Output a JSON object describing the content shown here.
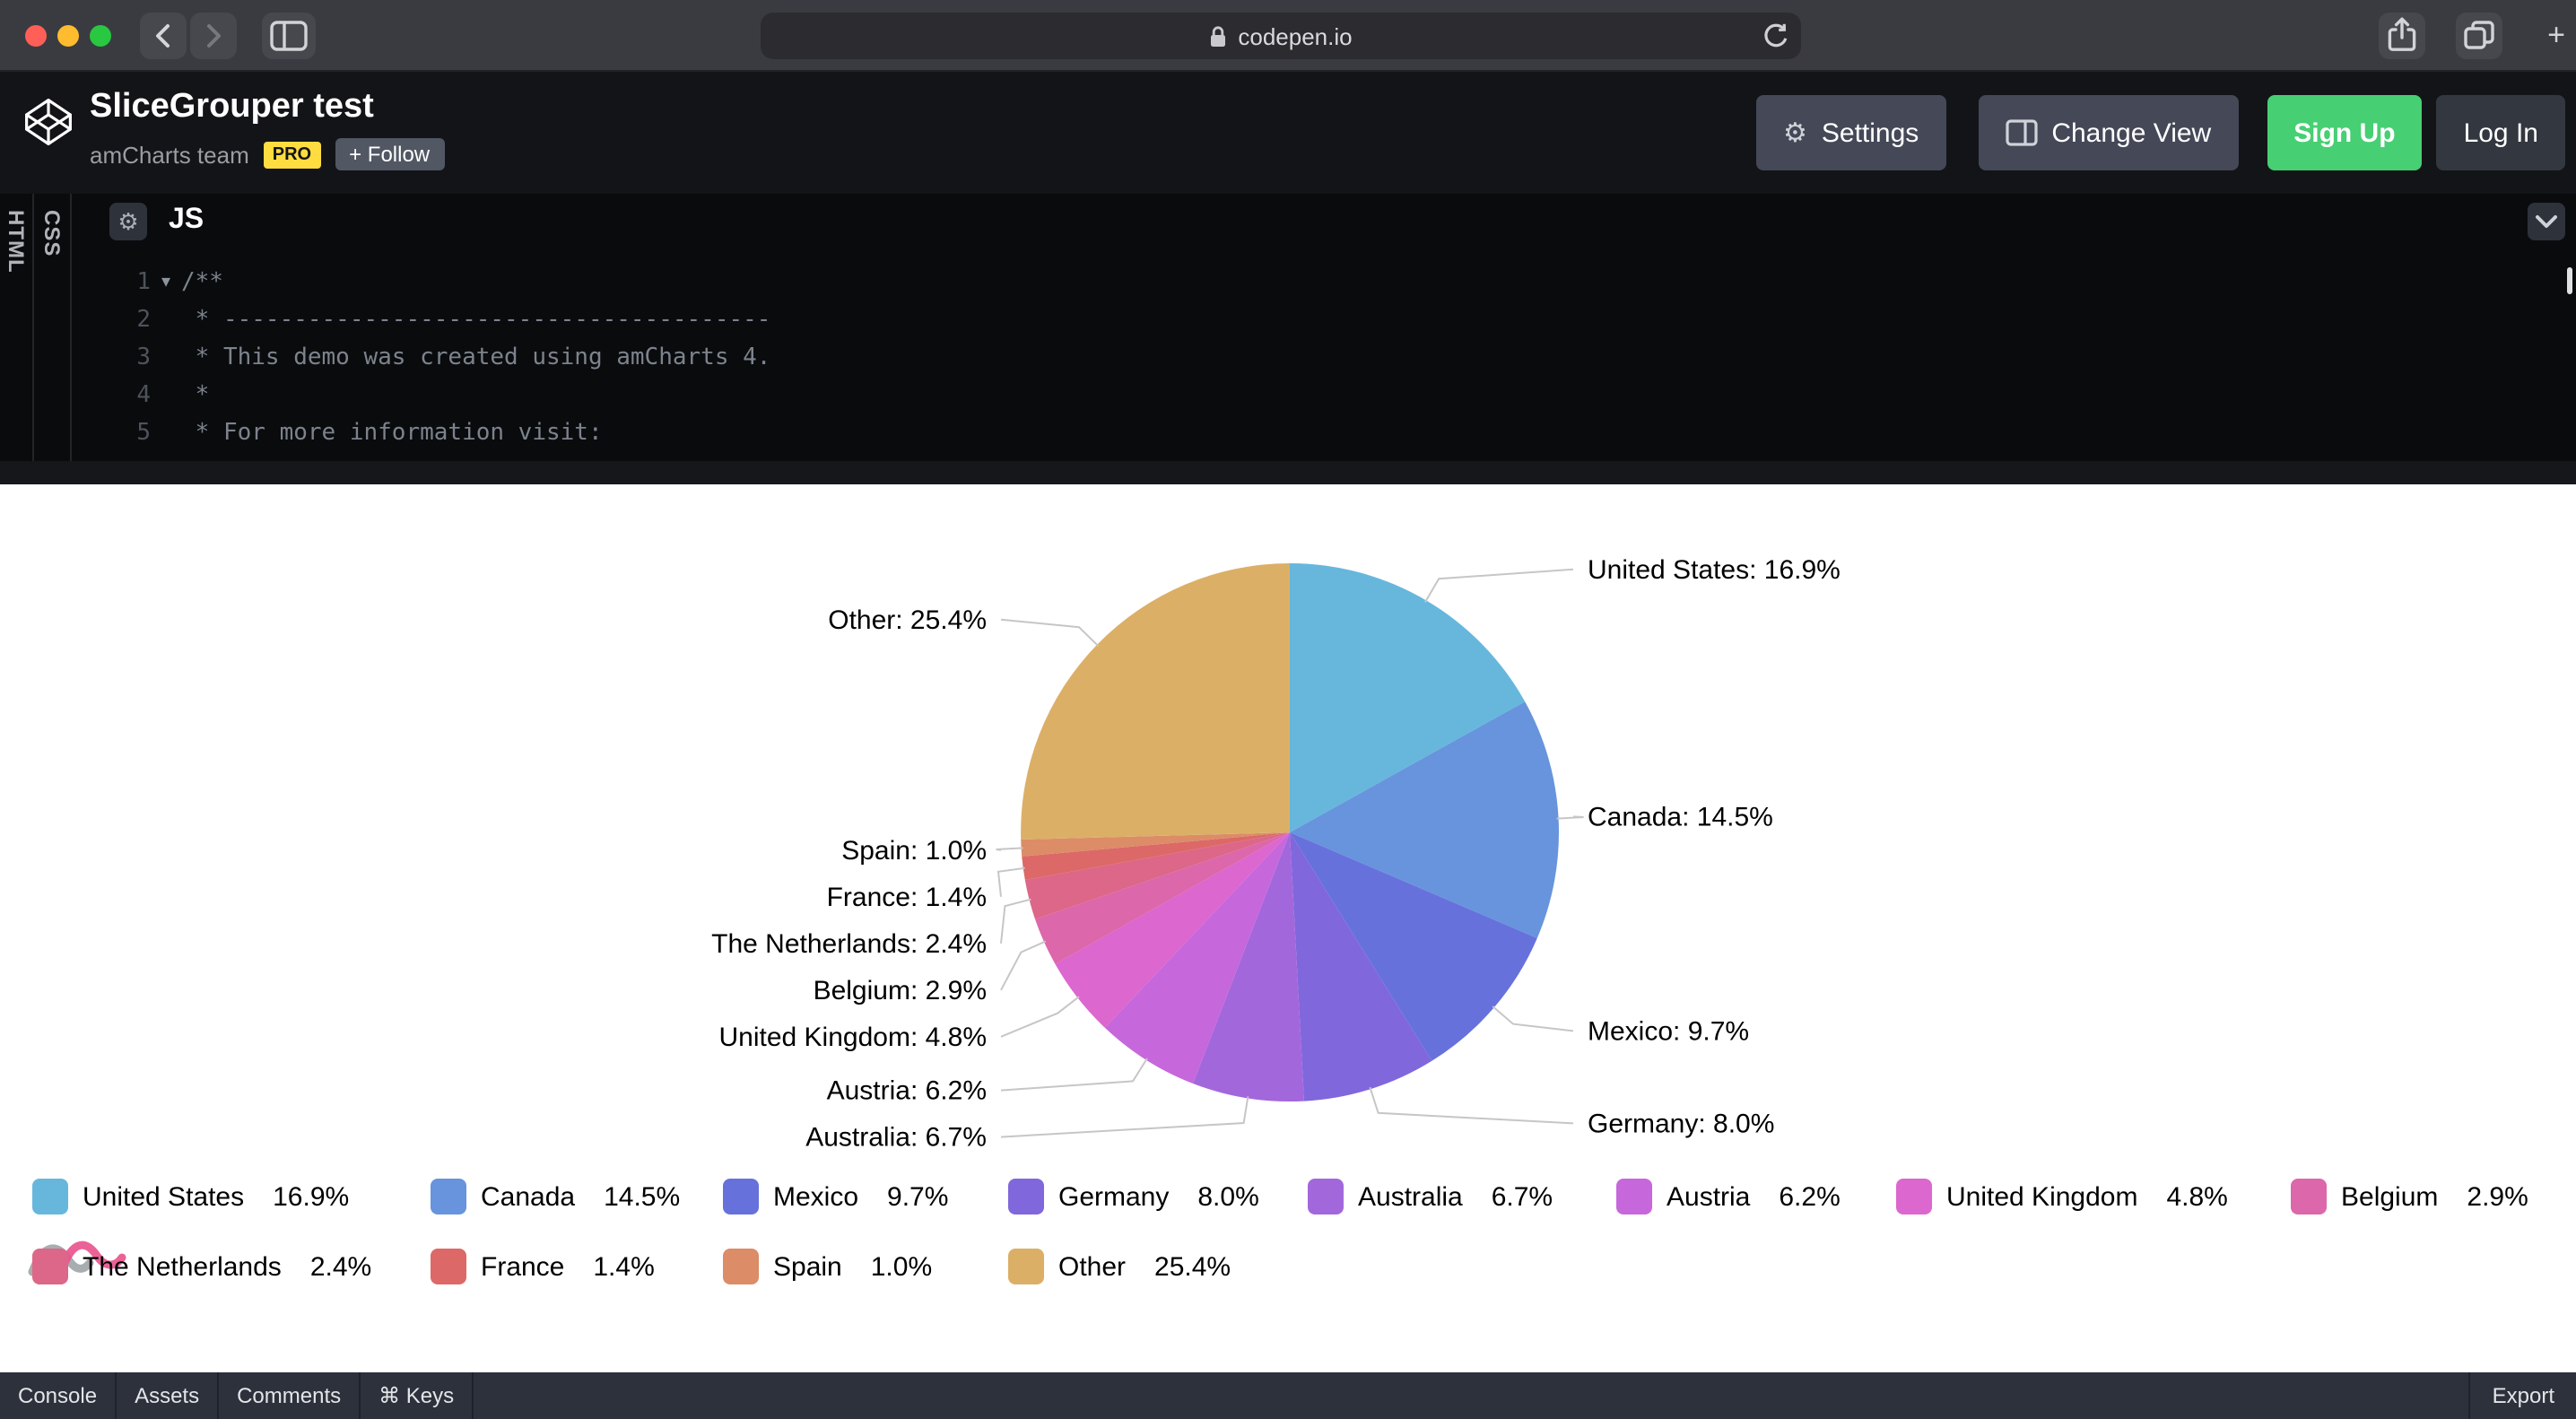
{
  "browser": {
    "url": "codepen.io"
  },
  "header": {
    "title": "SliceGrouper test",
    "author": "amCharts team",
    "pro_badge": "PRO",
    "follow_label": "+ Follow",
    "buttons": {
      "settings": "Settings",
      "change_view": "Change View",
      "sign_up": "Sign Up",
      "log_in": "Log In"
    }
  },
  "editor": {
    "collapsed_tabs": [
      "HTML",
      "CSS"
    ],
    "active_tab": "JS",
    "code_lines": [
      {
        "num": "1",
        "text": "/**",
        "fold": true
      },
      {
        "num": "2",
        "text": " * ---------------------------------------",
        "fold": false
      },
      {
        "num": "3",
        "text": " * This demo was created using amCharts 4.",
        "fold": false
      },
      {
        "num": "4",
        "text": " *",
        "fold": false
      },
      {
        "num": "5",
        "text": " * For more information visit:",
        "fold": false
      }
    ]
  },
  "chart_data": {
    "type": "pie",
    "start_angle": "top",
    "direction": "clockwise",
    "legend_position": "bottom",
    "label_format": "{name}: {percent}",
    "series": [
      {
        "name": "United States",
        "value": 16.9,
        "pct": "16.9%",
        "color": "#67B7DC"
      },
      {
        "name": "Canada",
        "value": 14.5,
        "pct": "14.5%",
        "color": "#6794DC"
      },
      {
        "name": "Mexico",
        "value": 9.7,
        "pct": "9.7%",
        "color": "#6771DC"
      },
      {
        "name": "Germany",
        "value": 8.0,
        "pct": "8.0%",
        "color": "#8067DC"
      },
      {
        "name": "Australia",
        "value": 6.7,
        "pct": "6.7%",
        "color": "#A367DC"
      },
      {
        "name": "Austria",
        "value": 6.2,
        "pct": "6.2%",
        "color": "#C767DC"
      },
      {
        "name": "United Kingdom",
        "value": 4.8,
        "pct": "4.8%",
        "color": "#DC67CE"
      },
      {
        "name": "Belgium",
        "value": 2.9,
        "pct": "2.9%",
        "color": "#DC67AB"
      },
      {
        "name": "The Netherlands",
        "value": 2.4,
        "pct": "2.4%",
        "color": "#DC6788"
      },
      {
        "name": "France",
        "value": 1.4,
        "pct": "1.4%",
        "color": "#DC6967"
      },
      {
        "name": "Spain",
        "value": 1.0,
        "pct": "1.0%",
        "color": "#DC8C67"
      },
      {
        "name": "Other",
        "value": 25.4,
        "pct": "25.4%",
        "color": "#DCAF67"
      }
    ]
  },
  "footer": {
    "items": [
      "Console",
      "Assets",
      "Comments",
      "⌘ Keys"
    ],
    "export_label": "Export"
  },
  "icons": {
    "gear": "⚙",
    "fold": "▾",
    "plus": "+"
  },
  "theme": {
    "signup_green": "#47cf73",
    "pro_badge_yellow": "#ffdd40",
    "header_bg": "#131417"
  }
}
